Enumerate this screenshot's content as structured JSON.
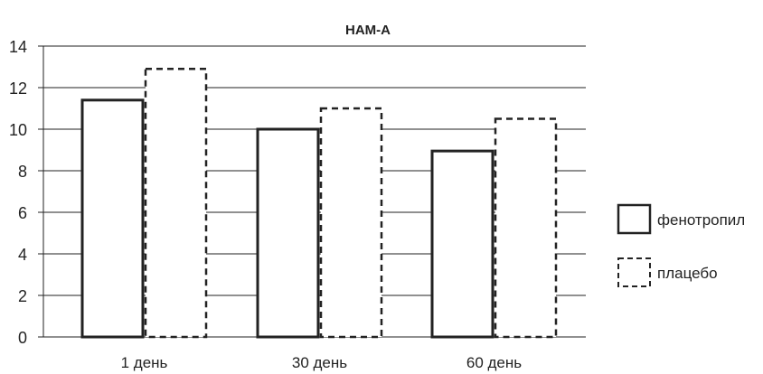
{
  "chart_data": {
    "type": "bar",
    "title": "HAM-A",
    "xlabel": "",
    "ylabel": "",
    "categories": [
      "1 день",
      "30 день",
      "60 день"
    ],
    "series": [
      {
        "name": "фенотропил",
        "values": [
          11.4,
          10.0,
          8.95
        ],
        "style": "solid"
      },
      {
        "name": "плацебо",
        "values": [
          12.9,
          11.0,
          10.5
        ],
        "style": "dashed"
      }
    ],
    "ylim": [
      0,
      14
    ],
    "yticks": [
      0,
      2,
      4,
      6,
      8,
      10,
      12,
      14
    ],
    "grid": true,
    "legend_position": "right",
    "colors": {
      "bar_stroke": "#222222",
      "bar_fill": "#ffffff",
      "grid": "#222222"
    }
  }
}
